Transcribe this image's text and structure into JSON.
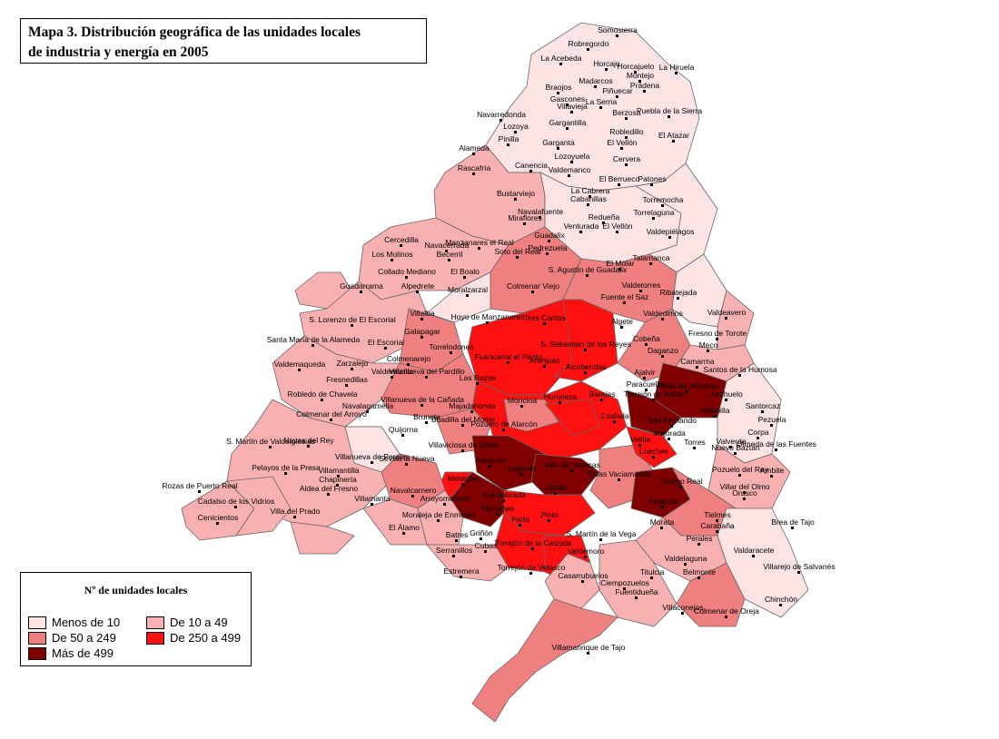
{
  "title": {
    "line1": "Mapa 3. Distribución geográfica de las unidades locales",
    "line2": "de industria y energía en 2005"
  },
  "legend": {
    "title": "Nº de unidades locales",
    "items": [
      {
        "label": "Menos de 10",
        "color": "#fde4e4"
      },
      {
        "label": "De 10 a 49",
        "color": "#f9b0b0"
      },
      {
        "label": "De 50 a 249",
        "color": "#f08080"
      },
      {
        "label": "De 250 a 499",
        "color": "#ff1010"
      },
      {
        "label": "Más de 499",
        "color": "#800000"
      }
    ]
  },
  "municipalities": [
    "Somosierra",
    "Robregordo",
    "La Acebeda",
    "Horcajo",
    "Horcajuelo",
    "La Hiruela",
    "Montejo",
    "Madarcos",
    "Braojos",
    "Prádena",
    "Piñuecar",
    "Gascones",
    "Puebla de la Sierra",
    "Villavieja",
    "La Serna",
    "Navarredonda",
    "Berzosa",
    "Gargantilla",
    "Lozoya",
    "Garganta",
    "Pinilla",
    "El Vellón",
    "Robledillo",
    "El Atazar",
    "Alameda",
    "Canencia",
    "Lozoyuela",
    "Cervera",
    "Rascafría",
    "Valdemanco",
    "El Berrueco",
    "Patones",
    "Bustarviejo",
    "La Cabrera",
    "Cabanillas",
    "Torremocha",
    "Navalafuente",
    "Redueña",
    "Torrelaguna",
    "Miraflores",
    "Guadalix",
    "Venturada",
    "El Vellón",
    "Valdepiélagos",
    "Cercedilla",
    "Navacerrada",
    "Manzanares el Real",
    "Becerril",
    "Soto del Real",
    "Pedrezuela",
    "Talamanca",
    "Los Molinos",
    "El Boalo",
    "El Molar",
    "Collado Mediano",
    "Alpedrete",
    "S. Agustín de Guadalix",
    "Guadarrama",
    "Moralzarzal",
    "Colmenar Viejo",
    "Valdetorres",
    "Fuente el Saz",
    "Ribatejada",
    "Villalba",
    "Algete",
    "Valdeolmos",
    "Valdeavero",
    "S. Lorenzo de El Escorial",
    "Hoyo de Manzanares",
    "Tres Cantos",
    "Cobeña",
    "Fresno de Torote",
    "Santa María de la Alameda",
    "El Escorial",
    "Galapagar",
    "Torrelodones",
    "S. Sebastián de los Reyes",
    "Meco",
    "Daganzo",
    "Zarzalejo",
    "Colmenarejo",
    "Fuencarral el Pardo",
    "Alcobendas",
    "Camarma",
    "Valdemaqueda",
    "Valdemorillo",
    "Villanueva del Pardillo",
    "Las Rozas",
    "Paracuellos",
    "Ajalvir",
    "Santos de la Humosa",
    "Fresnedillas",
    "Barajas",
    "Torrejón de Ardoz",
    "Alcalá de Henares",
    "Robledo de Chavela",
    "Villanueva de la Cañada",
    "Majadahonda",
    "Moncloa",
    "Hortaleza",
    "Coslada",
    "Anchuelo",
    "Navalagamella",
    "Boadilla del Monte",
    "Pozuelo de Alarcón",
    "Villalbilla",
    "Santorcaz",
    "Colmenar del Arroyo",
    "Quijorna",
    "Brunete",
    "Mejorada",
    "Loeches",
    "Corpa",
    "Pezuela",
    "S. Martín de Valdeiglesias",
    "Navas del Rey",
    "Villaviciosa de Odón",
    "San Fernando",
    "Torres",
    "Valverde",
    "Nuevo Baztán",
    "Olmeda de las Fuentes",
    "Pelayos de la Presa",
    "Villamantilla",
    "Villanueva de Perales",
    "Sevilla la Nueva",
    "Alcorcón",
    "Leganés",
    "Villa de Vallecas",
    "Velilla",
    "Rivas Vaciamadrid",
    "Pozuelo del Rey",
    "Ambite",
    "Rozas de Puerto Real",
    "Chapinería",
    "Aldea del Fresno",
    "Mostoles",
    "Getafe",
    "Campo Real",
    "Villar del Olmo",
    "Orusco",
    "Cadalso de los Vidrios",
    "Villamanta",
    "Navalcarnero",
    "Arroyomolinos",
    "Fuenlabrada",
    "Arganda",
    "Tielmes",
    "Cenicientos",
    "Villa del Prado",
    "Moraleja de Enmedio",
    "Humanes",
    "Parla",
    "Pinto",
    "Morata",
    "Carabaña",
    "Brea de Tajo",
    "El Álamo",
    "Batres",
    "Griñón",
    "Torrejón de la Calzada",
    "Cubas",
    "S. Martín de la Vega",
    "Perales",
    "Valdaracete",
    "Serranillos",
    "Torrejón de Velasco",
    "Valdemoro",
    "Valdelaguna",
    "Belmonte",
    "Villarejo de Salvanés",
    "Estremera",
    "Casarrubuelos",
    "Ciempozuelos",
    "Titulcia",
    "Chinchón",
    "Fuentidueña",
    "Villaconejos",
    "Colmenar de Oreja",
    "Villamanrique de Tajo",
    "Aranjuez"
  ]
}
